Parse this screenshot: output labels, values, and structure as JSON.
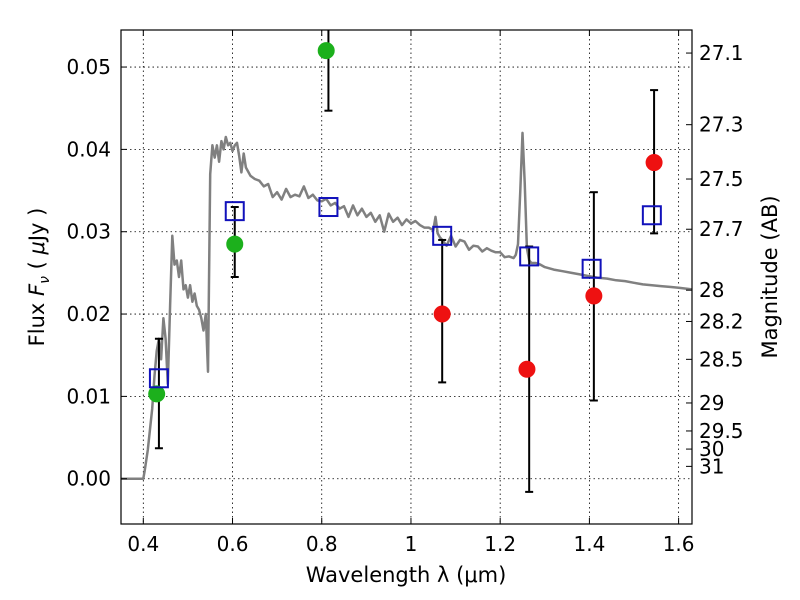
{
  "chart_data": {
    "type": "scatter",
    "xlabel": "Wavelength  λ (μm)",
    "ylabel": "Flux  F_ν  ( μJy )",
    "ylabel_parts": {
      "pre": "Flux  ",
      "var": "F",
      "sub": "ν",
      "post": "  ( ",
      "unit_mu": "μ",
      "unit": "Jy )"
    },
    "y2label": "Magnitude (AB)",
    "xlim": [
      0.35,
      1.63
    ],
    "ylim": [
      -0.0055,
      0.0545
    ],
    "x_ticks": [
      0.4,
      0.6,
      0.8,
      1.0,
      1.2,
      1.4,
      1.6
    ],
    "x_tick_labels": [
      "0.4",
      "0.6",
      "0.8",
      "1",
      "1.2",
      "1.4",
      "1.6"
    ],
    "y_ticks": [
      0.0,
      0.01,
      0.02,
      0.03,
      0.04,
      0.05
    ],
    "y_tick_labels": [
      "0.00",
      "0.01",
      "0.02",
      "0.03",
      "0.04",
      "0.05"
    ],
    "mag_ticks": [
      {
        "label": "27.1",
        "flux": 0.0517
      },
      {
        "label": "27.3",
        "flux": 0.043
      },
      {
        "label": "27.5",
        "flux": 0.0364
      },
      {
        "label": "27.7",
        "flux": 0.0303
      },
      {
        "label": "28",
        "flux": 0.0229
      },
      {
        "label": "28.2",
        "flux": 0.0191
      },
      {
        "label": "28.5",
        "flux": 0.0145
      },
      {
        "label": "29",
        "flux": 0.0092
      },
      {
        "label": "29.5",
        "flux": 0.0058
      },
      {
        "label": "30",
        "flux": 0.0036
      },
      {
        "label": "31",
        "flux": 0.0015
      }
    ],
    "grid": true,
    "colors": {
      "model": "#808080",
      "green": "#1cb01c",
      "red": "#ee1111",
      "square": "#1111bb",
      "errorbar": "#000000"
    },
    "model_sed": {
      "name": "model SED",
      "x": [
        0.35,
        0.4,
        0.403,
        0.41,
        0.42,
        0.425,
        0.43,
        0.435,
        0.44,
        0.445,
        0.45,
        0.455,
        0.46,
        0.465,
        0.47,
        0.475,
        0.48,
        0.485,
        0.49,
        0.495,
        0.5,
        0.505,
        0.51,
        0.515,
        0.52,
        0.525,
        0.53,
        0.535,
        0.54,
        0.545,
        0.55,
        0.555,
        0.56,
        0.565,
        0.57,
        0.575,
        0.58,
        0.585,
        0.59,
        0.595,
        0.6,
        0.605,
        0.61,
        0.615,
        0.62,
        0.625,
        0.63,
        0.64,
        0.65,
        0.66,
        0.67,
        0.68,
        0.69,
        0.7,
        0.71,
        0.72,
        0.73,
        0.74,
        0.75,
        0.76,
        0.77,
        0.78,
        0.79,
        0.8,
        0.81,
        0.82,
        0.83,
        0.84,
        0.85,
        0.86,
        0.87,
        0.88,
        0.89,
        0.9,
        0.91,
        0.92,
        0.93,
        0.94,
        0.95,
        0.96,
        0.97,
        0.98,
        0.99,
        1.0,
        1.01,
        1.02,
        1.03,
        1.04,
        1.05,
        1.055,
        1.06,
        1.065,
        1.07,
        1.08,
        1.09,
        1.1,
        1.11,
        1.12,
        1.13,
        1.14,
        1.15,
        1.16,
        1.17,
        1.18,
        1.19,
        1.2,
        1.21,
        1.22,
        1.23,
        1.235,
        1.24,
        1.245,
        1.25,
        1.255,
        1.26,
        1.265,
        1.27,
        1.28,
        1.29,
        1.3,
        1.32,
        1.34,
        1.36,
        1.38,
        1.4,
        1.42,
        1.44,
        1.46,
        1.48,
        1.5,
        1.52,
        1.54,
        1.56,
        1.58,
        1.6,
        1.63
      ],
      "y": [
        0.0,
        0.0,
        0.0009,
        0.0035,
        0.0085,
        0.0125,
        0.0155,
        0.017,
        0.0145,
        0.0195,
        0.017,
        0.0115,
        0.021,
        0.0295,
        0.026,
        0.0265,
        0.0245,
        0.0265,
        0.023,
        0.0235,
        0.022,
        0.0235,
        0.0215,
        0.0225,
        0.021,
        0.0205,
        0.0195,
        0.018,
        0.02,
        0.013,
        0.037,
        0.0405,
        0.039,
        0.0405,
        0.0385,
        0.041,
        0.04,
        0.0415,
        0.0405,
        0.0408,
        0.0398,
        0.0405,
        0.0408,
        0.0392,
        0.0372,
        0.0395,
        0.0378,
        0.0368,
        0.0364,
        0.0362,
        0.0355,
        0.0358,
        0.0342,
        0.0348,
        0.0339,
        0.0352,
        0.0342,
        0.0345,
        0.0343,
        0.0355,
        0.0341,
        0.0345,
        0.0338,
        0.0337,
        0.034,
        0.0332,
        0.0335,
        0.0328,
        0.0331,
        0.0318,
        0.0332,
        0.032,
        0.0328,
        0.0318,
        0.0323,
        0.0312,
        0.032,
        0.03,
        0.0322,
        0.0312,
        0.0317,
        0.0308,
        0.0315,
        0.031,
        0.0313,
        0.0308,
        0.0305,
        0.0305,
        0.0302,
        0.0318,
        0.0298,
        0.0293,
        0.029,
        0.0283,
        0.0295,
        0.0282,
        0.029,
        0.0288,
        0.0278,
        0.0283,
        0.0282,
        0.0276,
        0.028,
        0.0277,
        0.0275,
        0.0275,
        0.0269,
        0.027,
        0.0268,
        0.0272,
        0.0285,
        0.035,
        0.042,
        0.036,
        0.028,
        0.0265,
        0.0262,
        0.0262,
        0.026,
        0.0257,
        0.0254,
        0.0252,
        0.025,
        0.0248,
        0.0246,
        0.0244,
        0.0243,
        0.0241,
        0.024,
        0.0238,
        0.0236,
        0.0235,
        0.0234,
        0.0233,
        0.0232,
        0.023
      ]
    },
    "series": [
      {
        "name": "green circles",
        "marker": "circle",
        "color": "green",
        "x": [
          0.43,
          0.605,
          0.81
        ],
        "y": [
          0.0103,
          0.0285,
          0.052
        ]
      },
      {
        "name": "red circles",
        "marker": "circle",
        "color": "red",
        "x": [
          1.07,
          1.26,
          1.41,
          1.545
        ],
        "y": [
          0.02,
          0.0133,
          0.0222,
          0.0384
        ]
      },
      {
        "name": "blue squares",
        "marker": "square",
        "color": "square",
        "x": [
          0.435,
          0.605,
          0.815,
          1.07,
          1.265,
          1.405,
          1.54
        ],
        "y": [
          0.0122,
          0.0325,
          0.033,
          0.0295,
          0.027,
          0.0255,
          0.032
        ]
      }
    ],
    "error_bars": [
      {
        "x": 0.435,
        "low": 0.0037,
        "high": 0.017
      },
      {
        "x": 0.605,
        "low": 0.0245,
        "high": 0.033
      },
      {
        "x": 0.815,
        "low": 0.0447,
        "high": 0.055
      },
      {
        "x": 1.07,
        "low": 0.0117,
        "high": 0.029
      },
      {
        "x": 1.265,
        "low": -0.0016,
        "high": 0.0282
      },
      {
        "x": 1.41,
        "low": 0.0095,
        "high": 0.0348
      },
      {
        "x": 1.545,
        "low": 0.0298,
        "high": 0.0472
      }
    ]
  }
}
